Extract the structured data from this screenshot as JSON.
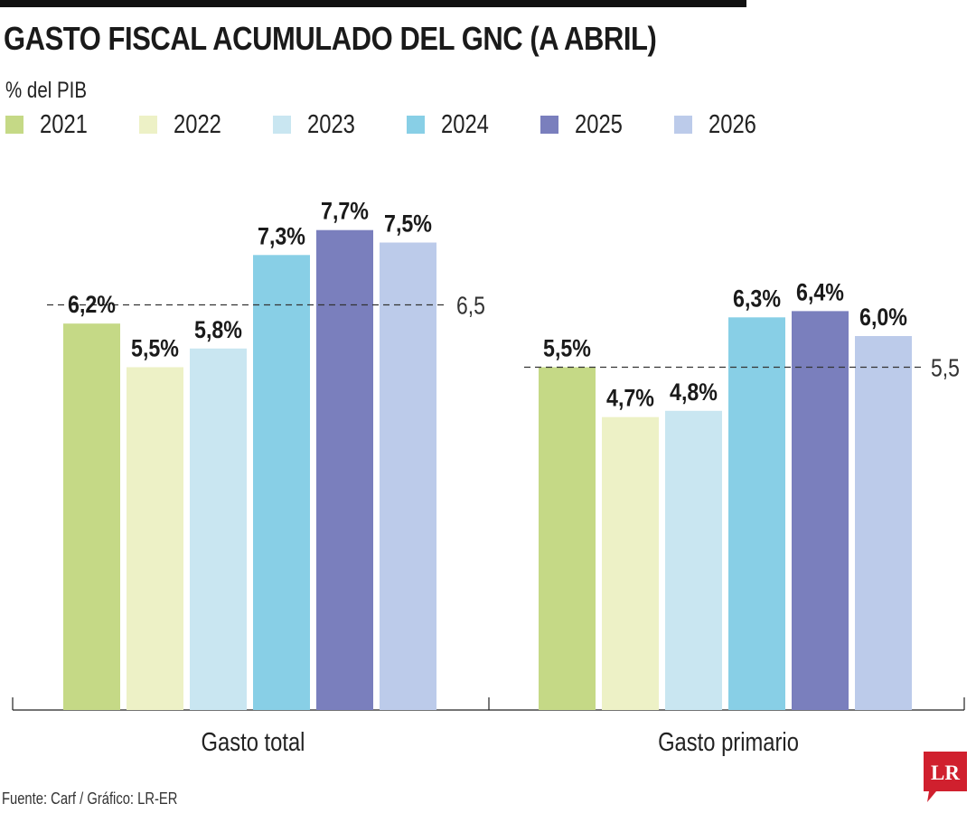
{
  "title": "GASTO FISCAL ACUMULADO DEL GNC (A ABRIL)",
  "subtitle": "% del PIB",
  "source": "Fuente: Carf / Gráfico: LR-ER",
  "logo": {
    "text": "LR",
    "icon": "speech-bubble-logo",
    "color": "#d0202e"
  },
  "chart_data": {
    "type": "bar",
    "categories": [
      "Gasto total",
      "Gasto primario"
    ],
    "series": [
      {
        "name": "2021",
        "color": "#c5d986",
        "values": [
          6.2,
          5.5
        ],
        "labels": [
          "6,2%",
          "5,5%"
        ]
      },
      {
        "name": "2022",
        "color": "#edf1c6",
        "values": [
          5.5,
          4.7
        ],
        "labels": [
          "5,5%",
          "4,7%"
        ]
      },
      {
        "name": "2023",
        "color": "#c9e6f1",
        "values": [
          5.8,
          4.8
        ],
        "labels": [
          "5,8%",
          "4,8%"
        ]
      },
      {
        "name": "2024",
        "color": "#88cfe6",
        "values": [
          7.3,
          6.3
        ],
        "labels": [
          "7,3%",
          "6,3%"
        ]
      },
      {
        "name": "2025",
        "color": "#7a7fbd",
        "values": [
          7.7,
          6.4
        ],
        "labels": [
          "7,7%",
          "6,4%"
        ]
      },
      {
        "name": "2026",
        "color": "#bccbea",
        "values": [
          7.5,
          6.0
        ],
        "labels": [
          "7,5%",
          "6,0%"
        ]
      }
    ],
    "reference_lines": [
      {
        "category": "Gasto total",
        "value": 6.5,
        "label": "6,5"
      },
      {
        "category": "Gasto primario",
        "value": 5.5,
        "label": "5,5"
      }
    ],
    "ylim": [
      0,
      9.1
    ],
    "grid": false,
    "legend_position": "top-left"
  }
}
